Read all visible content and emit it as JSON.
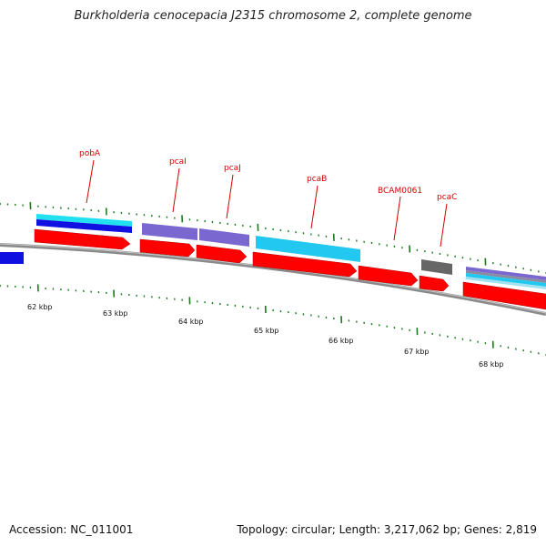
{
  "title": "Burkholderia cenocepacia J2315 chromosome 2, complete genome",
  "footer": {
    "accession": "Accession: NC_011001",
    "summary": "Topology: circular; Length: 3,217,062 bp; Genes: 2,819"
  },
  "colors": {
    "gene": "#ff0000",
    "cyan_feature": "#22c8f0",
    "purple_feature": "#7a68d0",
    "blue_feature": "#1010e0",
    "gray_feature": "#666666",
    "backbone": "#8a8a8a",
    "tick": "#1a7a1a",
    "label": "#d40000"
  },
  "scale": {
    "tick_labels": [
      "62 kbp",
      "63 kbp",
      "64 kbp",
      "65 kbp",
      "66 kbp",
      "67 kbp",
      "68 kbp"
    ]
  },
  "gene_labels": [
    "pobA",
    "pcaI",
    "pcaJ",
    "pcaB",
    "BCAM0061",
    "pcaC"
  ]
}
